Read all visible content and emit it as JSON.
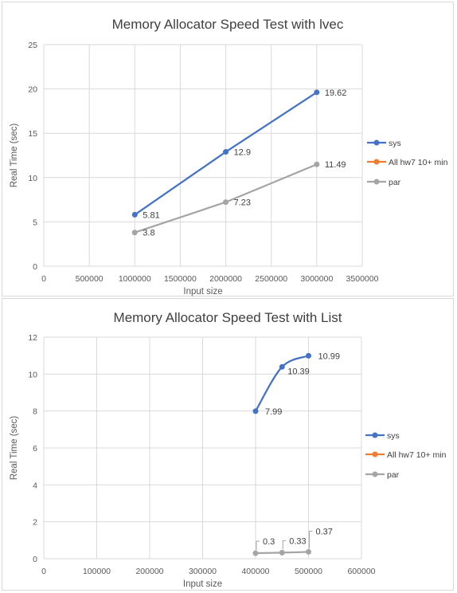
{
  "chart_data": [
    {
      "type": "line",
      "title": "Memory Allocator Speed Test with lvec",
      "xlabel": "Input size",
      "ylabel": "Real Time (sec)",
      "xlim": [
        0,
        3500000
      ],
      "ylim": [
        0,
        25
      ],
      "xticks": [
        "0",
        "500000",
        "1000000",
        "1500000",
        "2000000",
        "2500000",
        "3000000",
        "3500000"
      ],
      "yticks": [
        "0",
        "5",
        "10",
        "15",
        "20",
        "25"
      ],
      "grid": true,
      "legend": "right",
      "smooth": false,
      "series": [
        {
          "name": "sys",
          "color": "#4472c4",
          "x": [
            1000000,
            2000000,
            3000000
          ],
          "values": [
            5.81,
            12.9,
            19.62
          ],
          "labels": [
            "5.81",
            "12.9",
            "19.62"
          ]
        },
        {
          "name": "All hw7 10+ min",
          "color": "#ed7d31",
          "x": [],
          "values": [],
          "labels": []
        },
        {
          "name": "par",
          "color": "#a5a5a5",
          "x": [
            1000000,
            2000000,
            3000000
          ],
          "values": [
            3.8,
            7.23,
            11.49
          ],
          "labels": [
            "3.8",
            "7.23",
            "11.49"
          ]
        }
      ]
    },
    {
      "type": "line",
      "title": "Memory Allocator Speed Test with List",
      "xlabel": "Input size",
      "ylabel": "Real Time (sec)",
      "xlim": [
        0,
        600000
      ],
      "ylim": [
        0,
        12
      ],
      "xticks": [
        "0",
        "100000",
        "200000",
        "300000",
        "400000",
        "500000",
        "600000"
      ],
      "yticks": [
        "0",
        "2",
        "4",
        "6",
        "8",
        "10",
        "12"
      ],
      "grid": true,
      "legend": "right",
      "smooth": true,
      "series": [
        {
          "name": "sys",
          "color": "#4472c4",
          "x": [
            400000,
            450000,
            500000
          ],
          "values": [
            7.99,
            10.39,
            10.99
          ],
          "labels": [
            "7.99",
            "10.39",
            "10.99"
          ]
        },
        {
          "name": "All hw7 10+ min",
          "color": "#ed7d31",
          "x": [],
          "values": [],
          "labels": []
        },
        {
          "name": "par",
          "color": "#a5a5a5",
          "x": [
            400000,
            450000,
            500000
          ],
          "values": [
            0.3,
            0.33,
            0.37
          ],
          "labels": [
            "0.3",
            "0.33",
            "0.37"
          ]
        }
      ]
    }
  ]
}
